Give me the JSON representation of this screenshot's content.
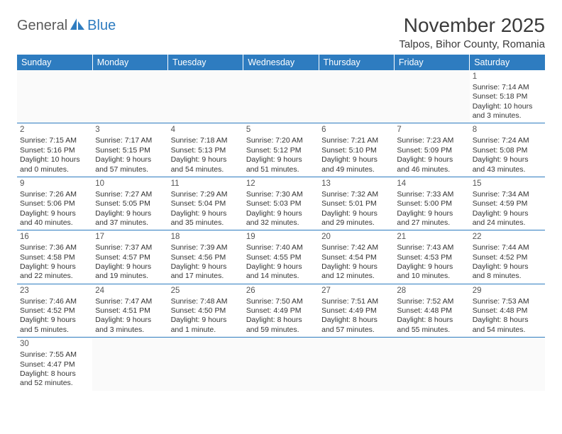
{
  "logo": {
    "general": "General",
    "blue": "Blue"
  },
  "title": "November 2025",
  "location": "Talpos, Bihor County, Romania",
  "colors": {
    "header_bg": "#2e7cc0",
    "header_text": "#ffffff",
    "border": "#2e7cc0",
    "body_text": "#333333",
    "logo_gray": "#5a5a5a",
    "logo_blue": "#2e7cc0"
  },
  "day_headers": [
    "Sunday",
    "Monday",
    "Tuesday",
    "Wednesday",
    "Thursday",
    "Friday",
    "Saturday"
  ],
  "weeks": [
    [
      null,
      null,
      null,
      null,
      null,
      null,
      {
        "n": "1",
        "sunrise": "Sunrise: 7:14 AM",
        "sunset": "Sunset: 5:18 PM",
        "d1": "Daylight: 10 hours",
        "d2": "and 3 minutes."
      }
    ],
    [
      {
        "n": "2",
        "sunrise": "Sunrise: 7:15 AM",
        "sunset": "Sunset: 5:16 PM",
        "d1": "Daylight: 10 hours",
        "d2": "and 0 minutes."
      },
      {
        "n": "3",
        "sunrise": "Sunrise: 7:17 AM",
        "sunset": "Sunset: 5:15 PM",
        "d1": "Daylight: 9 hours",
        "d2": "and 57 minutes."
      },
      {
        "n": "4",
        "sunrise": "Sunrise: 7:18 AM",
        "sunset": "Sunset: 5:13 PM",
        "d1": "Daylight: 9 hours",
        "d2": "and 54 minutes."
      },
      {
        "n": "5",
        "sunrise": "Sunrise: 7:20 AM",
        "sunset": "Sunset: 5:12 PM",
        "d1": "Daylight: 9 hours",
        "d2": "and 51 minutes."
      },
      {
        "n": "6",
        "sunrise": "Sunrise: 7:21 AM",
        "sunset": "Sunset: 5:10 PM",
        "d1": "Daylight: 9 hours",
        "d2": "and 49 minutes."
      },
      {
        "n": "7",
        "sunrise": "Sunrise: 7:23 AM",
        "sunset": "Sunset: 5:09 PM",
        "d1": "Daylight: 9 hours",
        "d2": "and 46 minutes."
      },
      {
        "n": "8",
        "sunrise": "Sunrise: 7:24 AM",
        "sunset": "Sunset: 5:08 PM",
        "d1": "Daylight: 9 hours",
        "d2": "and 43 minutes."
      }
    ],
    [
      {
        "n": "9",
        "sunrise": "Sunrise: 7:26 AM",
        "sunset": "Sunset: 5:06 PM",
        "d1": "Daylight: 9 hours",
        "d2": "and 40 minutes."
      },
      {
        "n": "10",
        "sunrise": "Sunrise: 7:27 AM",
        "sunset": "Sunset: 5:05 PM",
        "d1": "Daylight: 9 hours",
        "d2": "and 37 minutes."
      },
      {
        "n": "11",
        "sunrise": "Sunrise: 7:29 AM",
        "sunset": "Sunset: 5:04 PM",
        "d1": "Daylight: 9 hours",
        "d2": "and 35 minutes."
      },
      {
        "n": "12",
        "sunrise": "Sunrise: 7:30 AM",
        "sunset": "Sunset: 5:03 PM",
        "d1": "Daylight: 9 hours",
        "d2": "and 32 minutes."
      },
      {
        "n": "13",
        "sunrise": "Sunrise: 7:32 AM",
        "sunset": "Sunset: 5:01 PM",
        "d1": "Daylight: 9 hours",
        "d2": "and 29 minutes."
      },
      {
        "n": "14",
        "sunrise": "Sunrise: 7:33 AM",
        "sunset": "Sunset: 5:00 PM",
        "d1": "Daylight: 9 hours",
        "d2": "and 27 minutes."
      },
      {
        "n": "15",
        "sunrise": "Sunrise: 7:34 AM",
        "sunset": "Sunset: 4:59 PM",
        "d1": "Daylight: 9 hours",
        "d2": "and 24 minutes."
      }
    ],
    [
      {
        "n": "16",
        "sunrise": "Sunrise: 7:36 AM",
        "sunset": "Sunset: 4:58 PM",
        "d1": "Daylight: 9 hours",
        "d2": "and 22 minutes."
      },
      {
        "n": "17",
        "sunrise": "Sunrise: 7:37 AM",
        "sunset": "Sunset: 4:57 PM",
        "d1": "Daylight: 9 hours",
        "d2": "and 19 minutes."
      },
      {
        "n": "18",
        "sunrise": "Sunrise: 7:39 AM",
        "sunset": "Sunset: 4:56 PM",
        "d1": "Daylight: 9 hours",
        "d2": "and 17 minutes."
      },
      {
        "n": "19",
        "sunrise": "Sunrise: 7:40 AM",
        "sunset": "Sunset: 4:55 PM",
        "d1": "Daylight: 9 hours",
        "d2": "and 14 minutes."
      },
      {
        "n": "20",
        "sunrise": "Sunrise: 7:42 AM",
        "sunset": "Sunset: 4:54 PM",
        "d1": "Daylight: 9 hours",
        "d2": "and 12 minutes."
      },
      {
        "n": "21",
        "sunrise": "Sunrise: 7:43 AM",
        "sunset": "Sunset: 4:53 PM",
        "d1": "Daylight: 9 hours",
        "d2": "and 10 minutes."
      },
      {
        "n": "22",
        "sunrise": "Sunrise: 7:44 AM",
        "sunset": "Sunset: 4:52 PM",
        "d1": "Daylight: 9 hours",
        "d2": "and 8 minutes."
      }
    ],
    [
      {
        "n": "23",
        "sunrise": "Sunrise: 7:46 AM",
        "sunset": "Sunset: 4:52 PM",
        "d1": "Daylight: 9 hours",
        "d2": "and 5 minutes."
      },
      {
        "n": "24",
        "sunrise": "Sunrise: 7:47 AM",
        "sunset": "Sunset: 4:51 PM",
        "d1": "Daylight: 9 hours",
        "d2": "and 3 minutes."
      },
      {
        "n": "25",
        "sunrise": "Sunrise: 7:48 AM",
        "sunset": "Sunset: 4:50 PM",
        "d1": "Daylight: 9 hours",
        "d2": "and 1 minute."
      },
      {
        "n": "26",
        "sunrise": "Sunrise: 7:50 AM",
        "sunset": "Sunset: 4:49 PM",
        "d1": "Daylight: 8 hours",
        "d2": "and 59 minutes."
      },
      {
        "n": "27",
        "sunrise": "Sunrise: 7:51 AM",
        "sunset": "Sunset: 4:49 PM",
        "d1": "Daylight: 8 hours",
        "d2": "and 57 minutes."
      },
      {
        "n": "28",
        "sunrise": "Sunrise: 7:52 AM",
        "sunset": "Sunset: 4:48 PM",
        "d1": "Daylight: 8 hours",
        "d2": "and 55 minutes."
      },
      {
        "n": "29",
        "sunrise": "Sunrise: 7:53 AM",
        "sunset": "Sunset: 4:48 PM",
        "d1": "Daylight: 8 hours",
        "d2": "and 54 minutes."
      }
    ],
    [
      {
        "n": "30",
        "sunrise": "Sunrise: 7:55 AM",
        "sunset": "Sunset: 4:47 PM",
        "d1": "Daylight: 8 hours",
        "d2": "and 52 minutes."
      },
      null,
      null,
      null,
      null,
      null,
      null
    ]
  ]
}
